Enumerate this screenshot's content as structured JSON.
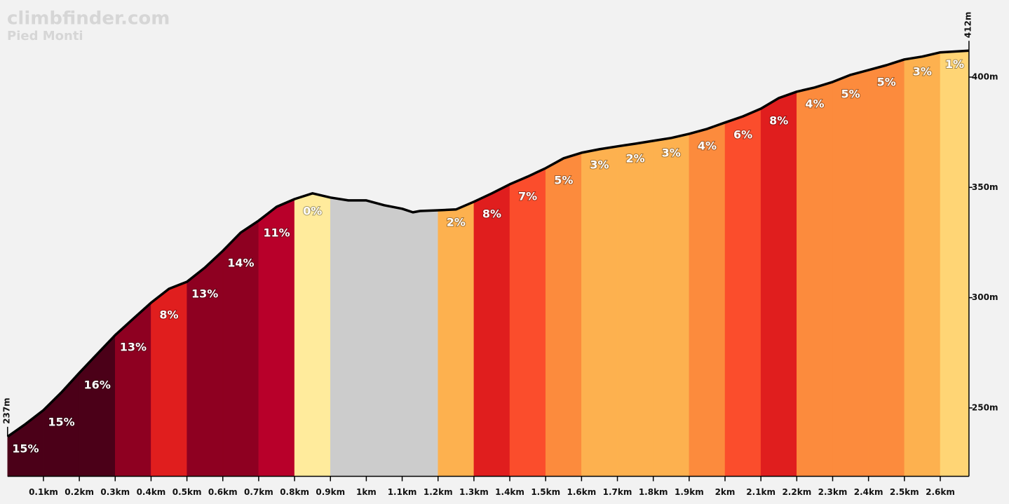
{
  "chart_data": {
    "type": "profile",
    "title": "climbfinder.com",
    "subtitle": "Pied Monti",
    "x": [
      0,
      0.05,
      0.1,
      0.15,
      0.2,
      0.25,
      0.3,
      0.35,
      0.4,
      0.45,
      0.5,
      0.55,
      0.6,
      0.65,
      0.7,
      0.75,
      0.8,
      0.85,
      0.9,
      0.95,
      1.0,
      1.05,
      1.1,
      1.13,
      1.15,
      1.2,
      1.25,
      1.3,
      1.35,
      1.4,
      1.45,
      1.5,
      1.55,
      1.6,
      1.65,
      1.7,
      1.75,
      1.8,
      1.85,
      1.9,
      1.95,
      2.0,
      2.05,
      2.1,
      2.15,
      2.2,
      2.25,
      2.3,
      2.35,
      2.4,
      2.45,
      2.5,
      2.55,
      2.6,
      2.68
    ],
    "values": [
      237,
      242.7,
      249,
      257,
      265.9,
      274.5,
      283,
      290.4,
      297.7,
      304,
      307.2,
      313.6,
      321.2,
      329.5,
      334.9,
      341.2,
      344.7,
      347.3,
      345.4,
      344.1,
      344.1,
      341.9,
      340.3,
      338.7,
      339.3,
      339.6,
      340,
      343.5,
      347.3,
      351.4,
      354.9,
      358.7,
      363.2,
      365.7,
      367.3,
      368.6,
      369.8,
      371.1,
      372.4,
      374.3,
      376.5,
      379.4,
      382.2,
      385.7,
      390.5,
      393.4,
      395.3,
      397.8,
      401,
      403.2,
      405.4,
      408,
      409.3,
      411.2,
      412
    ],
    "value_labels": [
      "237m",
      null,
      null,
      null,
      null,
      null,
      null,
      null,
      null,
      null,
      null,
      null,
      null,
      null,
      null,
      null,
      null,
      null,
      null,
      null,
      null,
      null,
      null,
      null,
      null,
      null,
      null,
      null,
      null,
      null,
      null,
      null,
      null,
      null,
      null,
      null,
      null,
      null,
      null,
      null,
      null,
      null,
      null,
      null,
      null,
      null,
      null,
      null,
      null,
      null,
      null,
      null,
      null,
      null,
      "412m"
    ],
    "line_color": "#000000",
    "segments": {
      "bins": [
        0,
        0.1,
        0.2,
        0.3,
        0.4,
        0.5,
        0.6,
        0.7,
        0.8,
        0.9,
        1.0,
        1.1,
        1.2,
        1.3,
        1.4,
        1.5,
        1.6,
        1.7,
        1.8,
        1.9,
        2.0,
        2.1,
        2.2,
        2.3,
        2.4,
        2.5,
        2.6,
        2.68
      ],
      "grades": [
        15,
        15,
        16,
        13,
        8,
        13,
        14,
        11,
        0,
        null,
        null,
        null,
        2,
        8,
        7,
        5,
        3,
        2,
        3,
        4,
        6,
        8,
        4,
        5,
        5,
        3,
        1
      ],
      "grade_labels": [
        "15%",
        "15%",
        "16%",
        "13%",
        "8%",
        "13%",
        "14%",
        "11%",
        "0%",
        null,
        null,
        null,
        "2%",
        "8%",
        "7%",
        "5%",
        "3%",
        "2%",
        "3%",
        "4%",
        "6%",
        "8%",
        "4%",
        "5%",
        "5%",
        "3%",
        "1%"
      ],
      "colors": [
        "#4b0018",
        "#4b0018",
        "#4b0018",
        "#8e0021",
        "#e01e1e",
        "#8e0021",
        "#8e0021",
        "#b8002a",
        "#ffeb9c",
        "#cccccc",
        "#cccccc",
        "#cccccc",
        "#fdb14f",
        "#e01e1e",
        "#fb4d2c",
        "#fc8b3d",
        "#fdb14f",
        "#fdb14f",
        "#fdb14f",
        "#fc8b3d",
        "#fb4d2c",
        "#e01e1e",
        "#fc8b3d",
        "#fc8b3d",
        "#fc8b3d",
        "#fdb14f",
        "#ffd575"
      ]
    },
    "xlim": [
      0,
      2.68
    ],
    "ylim": [
      219,
      432
    ],
    "xticks": [
      {
        "value": 0.1,
        "label": "0.1km"
      },
      {
        "value": 0.2,
        "label": "0.2km"
      },
      {
        "value": 0.3,
        "label": "0.3km"
      },
      {
        "value": 0.4,
        "label": "0.4km"
      },
      {
        "value": 0.5,
        "label": "0.5km"
      },
      {
        "value": 0.6,
        "label": "0.6km"
      },
      {
        "value": 0.7,
        "label": "0.7km"
      },
      {
        "value": 0.8,
        "label": "0.8km"
      },
      {
        "value": 0.9,
        "label": "0.9km"
      },
      {
        "value": 1,
        "label": "1km"
      },
      {
        "value": 1.1,
        "label": "1.1km"
      },
      {
        "value": 1.2,
        "label": "1.2km"
      },
      {
        "value": 1.3,
        "label": "1.3km"
      },
      {
        "value": 1.4,
        "label": "1.4km"
      },
      {
        "value": 1.5,
        "label": "1.5km"
      },
      {
        "value": 1.6,
        "label": "1.6km"
      },
      {
        "value": 1.7,
        "label": "1.7km"
      },
      {
        "value": 1.8,
        "label": "1.8km"
      },
      {
        "value": 1.9,
        "label": "1.9km"
      },
      {
        "value": 2,
        "label": "2km"
      },
      {
        "value": 2.1,
        "label": "2.1km"
      },
      {
        "value": 2.2,
        "label": "2.2km"
      },
      {
        "value": 2.3,
        "label": "2.3km"
      },
      {
        "value": 2.4,
        "label": "2.4km"
      },
      {
        "value": 2.5,
        "label": "2.5km"
      },
      {
        "value": 2.6,
        "label": "2.6km"
      }
    ],
    "yticks": [
      {
        "value": 250,
        "label": "250m"
      },
      {
        "value": 300,
        "label": "300m"
      },
      {
        "value": 350,
        "label": "350m"
      },
      {
        "value": 400,
        "label": "400m"
      }
    ]
  }
}
